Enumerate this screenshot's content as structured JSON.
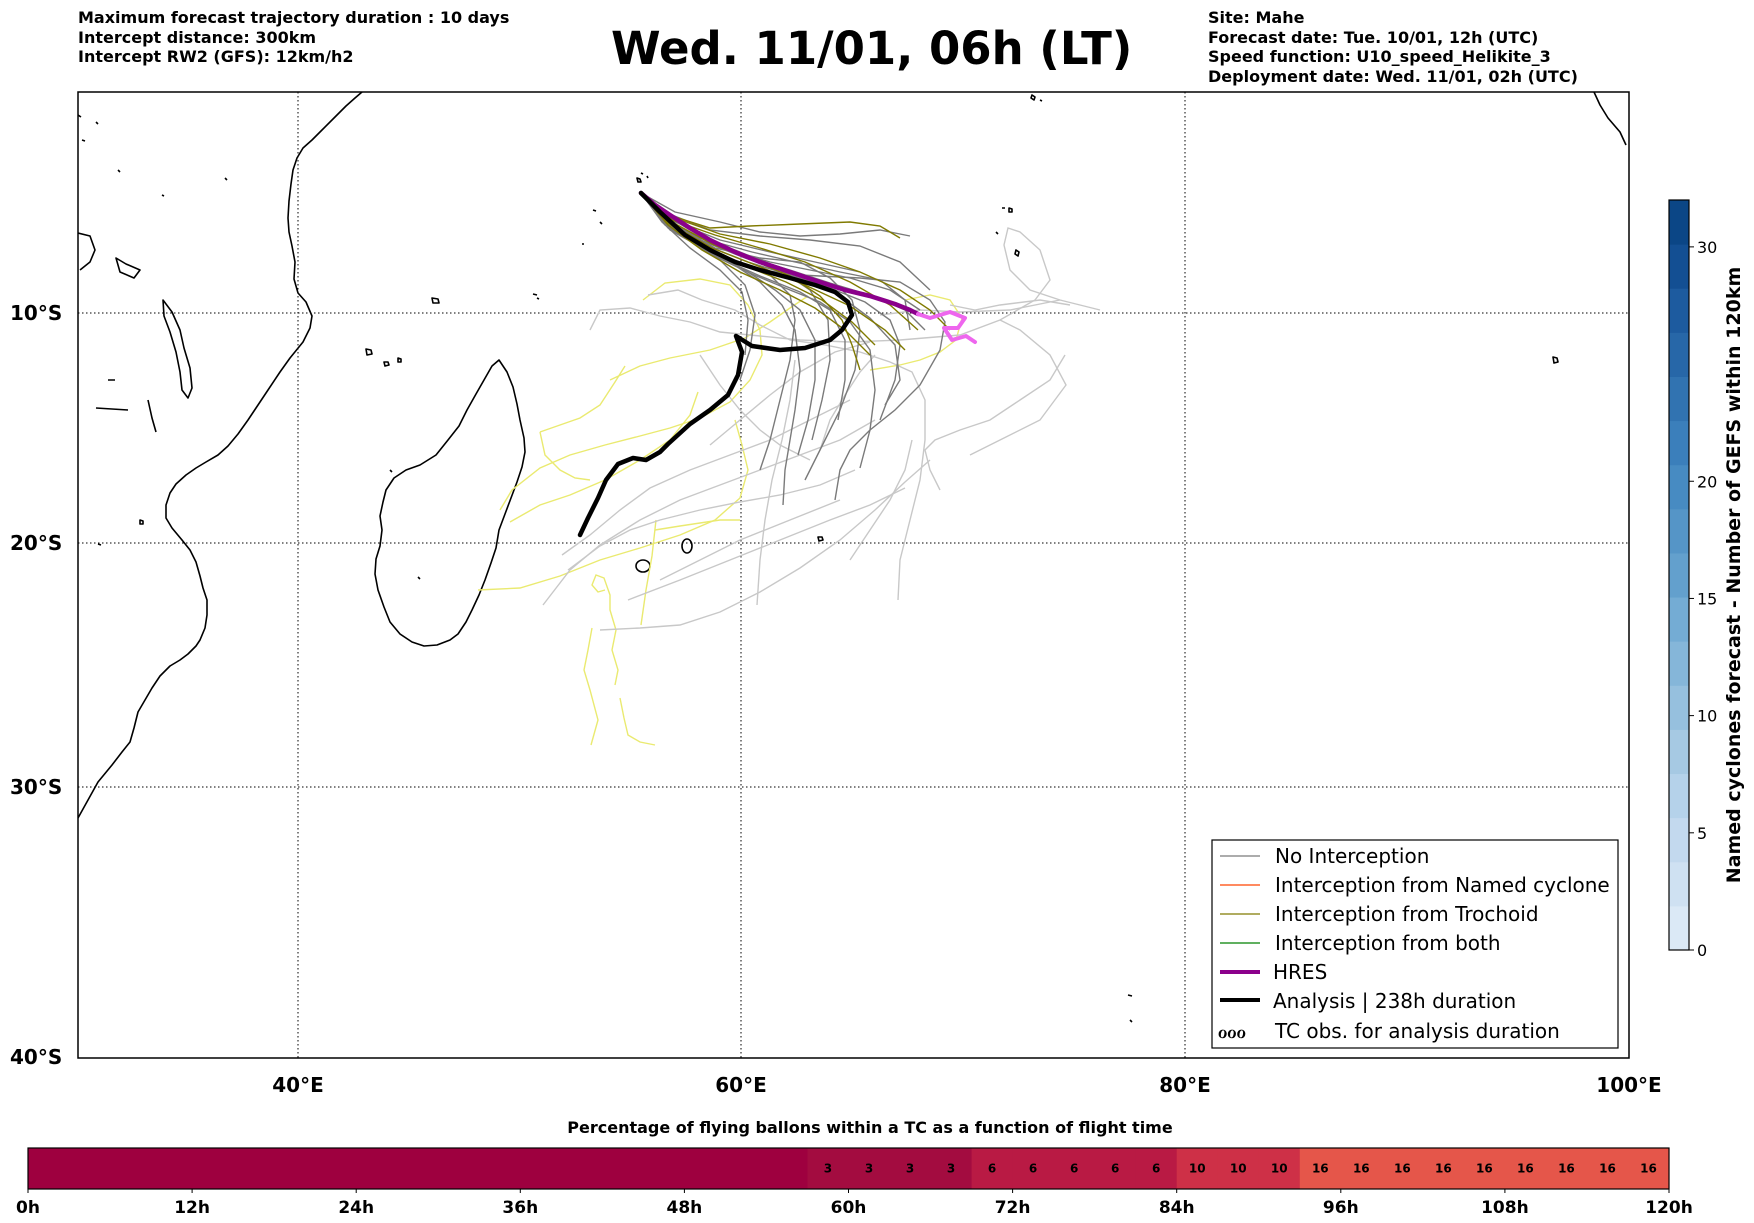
{
  "header": {
    "left_lines": [
      "Maximum forecast trajectory duration : 10 days",
      "Intercept distance: 300km",
      "Intercept RW2 (GFS):  12km/h2"
    ],
    "title": "Wed. 11/01, 06h (LT)",
    "right_lines": [
      "Site: Mahe",
      "Forecast date: Tue. 10/01, 12h (UTC)",
      "Speed function: U10_speed_Helikite_3",
      "Deployment date: Wed. 11/01, 02h (UTC)"
    ]
  },
  "map": {
    "lon_range": [
      30,
      100
    ],
    "lat_range": [
      -40,
      0
    ],
    "lat_labels": [
      "10°S",
      "20°S",
      "30°S",
      "40°S"
    ],
    "lon_labels": [
      "40°E",
      "60°E",
      "80°E",
      "100°E"
    ],
    "site": "Mahe",
    "colors": {
      "no_interception": "#7a7a7a",
      "named_cyclone": "#ff4500",
      "trochoid": "#807a00",
      "both": "#008000",
      "hres": "#8b008b",
      "hres_late": "#ee66ee",
      "analysis": "#000000",
      "faint_gray": "#c8c8c8",
      "faint_yellow": "#eaea70"
    }
  },
  "legend": {
    "items": [
      {
        "label": "No Interception",
        "color": "#7a7a7a",
        "width": 1.2
      },
      {
        "label": "Interception from Named cyclone",
        "color": "#ff4500",
        "width": 1.2
      },
      {
        "label": "Interception from Trochoid",
        "color": "#807a00",
        "width": 1.2
      },
      {
        "label": "Interception from both",
        "color": "#008000",
        "width": 1.2
      },
      {
        "label": "HRES",
        "color": "#8b008b",
        "width": 4
      },
      {
        "label": "Analysis | 238h duration",
        "color": "#000000",
        "width": 4
      }
    ],
    "tc_symbol": "ℴℴℴ",
    "tc_label": "TC obs. for analysis duration"
  },
  "colorbar": {
    "title": "Named cyclones forecast - Number of GEFS within 120km",
    "min": 0,
    "max": 32,
    "ticks": [
      0,
      5,
      10,
      15,
      20,
      30
    ],
    "tick_labels": [
      "0",
      "5",
      "10",
      "15",
      "20",
      "30"
    ],
    "colors": [
      "#dbe9f6",
      "#cfe1f2",
      "#c3d9ee",
      "#b5d2ea",
      "#a6c9e3",
      "#96c0de",
      "#85b6d9",
      "#74acd4",
      "#63a0cd",
      "#5595c7",
      "#478bc2",
      "#3b7fbb",
      "#3173b1",
      "#2767a8",
      "#1d5b9f",
      "#134f93",
      "#0b4686"
    ]
  },
  "flight_bar": {
    "title": "Percentage of flying ballons within a TC as a function of flight time",
    "hours": [
      0,
      120
    ],
    "tick_labels": [
      "0h",
      "12h",
      "24h",
      "36h",
      "48h",
      "60h",
      "72h",
      "84h",
      "96h",
      "108h",
      "120h"
    ],
    "segments": [
      {
        "start": 0,
        "end": 57,
        "value": "",
        "color": "#9e003f"
      },
      {
        "start": 57,
        "end": 60,
        "value": "3",
        "color": "#a30c40"
      },
      {
        "start": 60,
        "end": 63,
        "value": "3",
        "color": "#a30c40"
      },
      {
        "start": 63,
        "end": 66,
        "value": "3",
        "color": "#a30c40"
      },
      {
        "start": 66,
        "end": 69,
        "value": "3",
        "color": "#a30c40"
      },
      {
        "start": 69,
        "end": 72,
        "value": "6",
        "color": "#b91a44"
      },
      {
        "start": 72,
        "end": 75,
        "value": "6",
        "color": "#b91a44"
      },
      {
        "start": 75,
        "end": 78,
        "value": "6",
        "color": "#b91a44"
      },
      {
        "start": 78,
        "end": 81,
        "value": "6",
        "color": "#b91a44"
      },
      {
        "start": 81,
        "end": 84,
        "value": "6",
        "color": "#b91a44"
      },
      {
        "start": 84,
        "end": 87,
        "value": "10",
        "color": "#ce3047"
      },
      {
        "start": 87,
        "end": 90,
        "value": "10",
        "color": "#ce3047"
      },
      {
        "start": 90,
        "end": 93,
        "value": "10",
        "color": "#ce3047"
      },
      {
        "start": 93,
        "end": 96,
        "value": "16",
        "color": "#e5564a"
      },
      {
        "start": 96,
        "end": 99,
        "value": "16",
        "color": "#e5564a"
      },
      {
        "start": 99,
        "end": 102,
        "value": "16",
        "color": "#e5564a"
      },
      {
        "start": 102,
        "end": 105,
        "value": "16",
        "color": "#e5564a"
      },
      {
        "start": 105,
        "end": 108,
        "value": "16",
        "color": "#e5564a"
      },
      {
        "start": 108,
        "end": 111,
        "value": "16",
        "color": "#e5564a"
      },
      {
        "start": 111,
        "end": 114,
        "value": "16",
        "color": "#e5564a"
      },
      {
        "start": 114,
        "end": 117,
        "value": "16",
        "color": "#e5564a"
      },
      {
        "start": 117,
        "end": 120,
        "value": "16",
        "color": "#e5564a"
      }
    ]
  }
}
